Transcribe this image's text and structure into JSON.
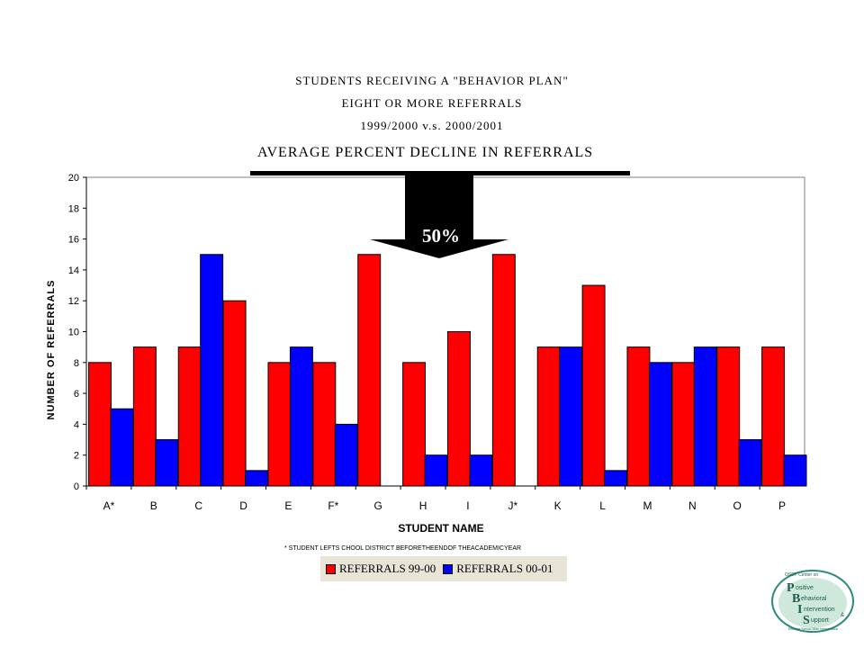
{
  "title_lines": [
    "STUDENTS RECEIVING A \"BEHAVIOR PLAN\"",
    "EIGHT OR MORE REFERRALS",
    "1999/2000 v.s. 2000/2001"
  ],
  "callout": {
    "label": "AVERAGE PERCENT DECLINE IN REFERRALS",
    "value": "50%"
  },
  "footnote": "* STUDENT LEFTS CHOOL DISTRICT BEFORETHEENDOF THEACADEMICYEAR",
  "logo": {
    "header": "OSEP Center on",
    "letters": [
      "P",
      "B",
      "I",
      "S"
    ],
    "words": [
      "ositive",
      "ehavioral",
      "ntervention",
      "upport"
    ],
    "amp": "&",
    "tagline": "Effective School-Wide Interventions"
  },
  "colors": {
    "series_99_00": "#ff0000",
    "series_00_01": "#0000ff",
    "plot_bg": "#ffffff",
    "legend_bg": "#e8e4d6"
  },
  "chart_data": {
    "type": "bar",
    "xlabel": "STUDENT NAME",
    "ylabel": "NUMBER OF REFERRALS",
    "ylim": [
      0,
      20
    ],
    "yticks": [
      0,
      2,
      4,
      6,
      8,
      10,
      12,
      14,
      16,
      18,
      20
    ],
    "grid": false,
    "legend_position": "bottom",
    "categories": [
      "A*",
      "B",
      "C",
      "D",
      "E",
      "F*",
      "G",
      "H",
      "I",
      "J*",
      "K",
      "L",
      "M",
      "N",
      "O",
      "P"
    ],
    "series": [
      {
        "name": "REFERRALS 99-00",
        "values": [
          8,
          9,
          9,
          12,
          8,
          8,
          15,
          8,
          10,
          15,
          9,
          13,
          9,
          8,
          9,
          9
        ]
      },
      {
        "name": "REFERRALS 00-01",
        "values": [
          5,
          3,
          15,
          1,
          9,
          4,
          0,
          2,
          2,
          0,
          9,
          1,
          8,
          9,
          3,
          2
        ]
      }
    ]
  }
}
